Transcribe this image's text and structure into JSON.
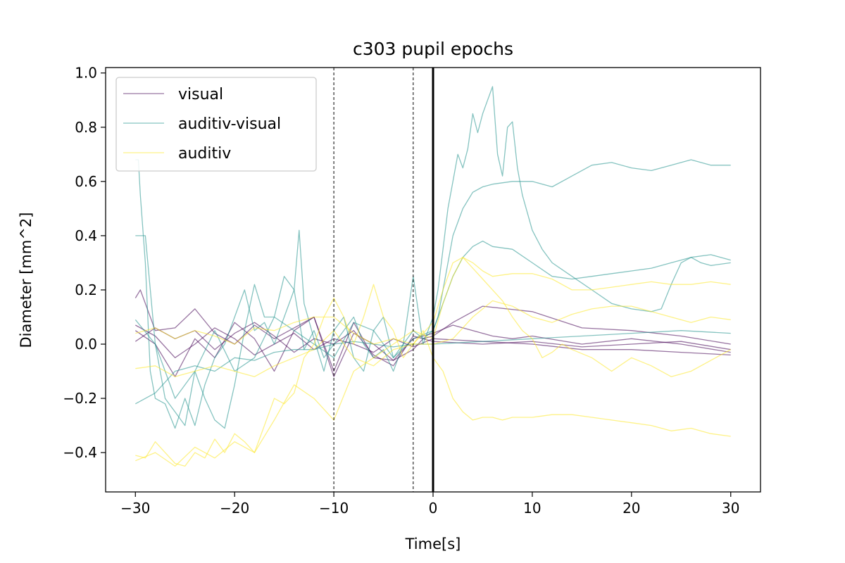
{
  "chart_data": {
    "type": "line",
    "title": "c303 pupil epochs",
    "xlabel": "Time[s]",
    "ylabel": "Diameter [mm^2]",
    "xlim": [
      -33,
      33
    ],
    "ylim": [
      -0.545,
      1.02
    ],
    "xticks": [
      -30,
      -20,
      -10,
      0,
      10,
      20,
      30
    ],
    "xtick_labels": [
      "−30",
      "−20",
      "−10",
      "0",
      "10",
      "20",
      "30"
    ],
    "yticks": [
      -0.4,
      -0.2,
      0.0,
      0.2,
      0.4,
      0.6,
      0.8,
      1.0
    ],
    "ytick_labels": [
      "−0.4",
      "−0.2",
      "0.0",
      "0.2",
      "0.4",
      "0.6",
      "0.8",
      "1.0"
    ],
    "grid": false,
    "legend_position": "upper-left",
    "colors": {
      "visual": "#440154",
      "auditiv-visual": "#21918c",
      "auditiv": "#fde725"
    },
    "vlines": [
      {
        "x": -10,
        "style": "dashed",
        "color": "#000000"
      },
      {
        "x": -2,
        "style": "dashed",
        "color": "#000000"
      },
      {
        "x": 0,
        "style": "solid",
        "color": "#000000"
      }
    ],
    "legend": [
      "visual",
      "auditiv-visual",
      "auditiv"
    ],
    "series": [
      {
        "name": "visual",
        "x": [
          -30,
          -29.5,
          -28,
          -26,
          -24,
          -22,
          -20,
          -18,
          -16,
          -14,
          -12,
          -10,
          -8,
          -6,
          -4,
          -2,
          -1,
          0,
          2,
          5,
          10,
          15,
          20,
          25,
          30
        ],
        "y": [
          0.17,
          0.2,
          0.05,
          0.06,
          0.13,
          0.04,
          0.0,
          0.07,
          0.02,
          0.06,
          0.1,
          -0.1,
          0.08,
          -0.05,
          -0.06,
          -0.02,
          0.02,
          0.03,
          0.08,
          0.14,
          0.12,
          0.06,
          0.05,
          0.03,
          0.0
        ]
      },
      {
        "name": "visual",
        "x": [
          -30,
          -28,
          -26,
          -24,
          -22,
          -20,
          -18,
          -16,
          -14,
          -12,
          -10,
          -8,
          -6,
          -4,
          -2,
          0,
          2,
          4,
          6,
          8,
          10,
          15,
          20,
          25,
          30
        ],
        "y": [
          0.05,
          0.0,
          -0.12,
          0.02,
          -0.05,
          0.08,
          0.02,
          -0.1,
          0.05,
          0.1,
          -0.12,
          0.04,
          0.0,
          -0.06,
          0.02,
          0.04,
          0.07,
          0.05,
          0.03,
          0.02,
          0.03,
          0.0,
          0.02,
          0.0,
          -0.03
        ]
      },
      {
        "name": "visual",
        "x": [
          -30,
          -28,
          -26,
          -24,
          -22,
          -20,
          -18,
          -16,
          -14,
          -12,
          -10,
          -8,
          -6,
          -4,
          -2,
          0,
          5,
          10,
          15,
          20,
          25,
          30
        ],
        "y": [
          0.01,
          0.06,
          0.02,
          0.05,
          -0.02,
          0.04,
          0.08,
          0.03,
          -0.03,
          0.02,
          0.0,
          0.05,
          -0.04,
          -0.08,
          0.03,
          0.01,
          0.0,
          0.01,
          -0.01,
          0.0,
          0.01,
          -0.02
        ]
      },
      {
        "name": "visual",
        "x": [
          -30,
          -28,
          -26,
          -24,
          -22,
          -20,
          -18,
          -16,
          -14,
          -12,
          -10,
          -8,
          -6,
          -4,
          -2,
          0,
          5,
          10,
          15,
          20,
          25,
          30
        ],
        "y": [
          0.07,
          0.03,
          -0.05,
          0.0,
          0.06,
          0.02,
          -0.04,
          0.0,
          0.04,
          -0.02,
          0.02,
          0.0,
          -0.03,
          0.02,
          -0.01,
          0.02,
          0.01,
          0.0,
          -0.02,
          -0.02,
          -0.03,
          -0.04
        ]
      },
      {
        "name": "auditiv-visual",
        "x": [
          -30,
          -29.7,
          -29.5,
          -29,
          -28.5,
          -28,
          -27,
          -26,
          -25,
          -24,
          -23,
          -22,
          -21,
          -20,
          -19,
          -18,
          -17,
          -16,
          -15,
          -14,
          -13.5,
          -13,
          -12,
          -11,
          -10,
          -9,
          -8,
          -7,
          -6,
          -5,
          -4,
          -3,
          -2,
          -1,
          0,
          0.5,
          1,
          1.5,
          2,
          2.5,
          3,
          3.5,
          4,
          4.5,
          5,
          5.5,
          6,
          6.5,
          7,
          7.5,
          8,
          8.5,
          9,
          10,
          11,
          12,
          14,
          16,
          18,
          20,
          22,
          23,
          24,
          25,
          26,
          27,
          28,
          30
        ],
        "y": [
          0.68,
          0.68,
          0.55,
          0.3,
          -0.1,
          -0.2,
          -0.22,
          -0.31,
          -0.2,
          -0.3,
          -0.15,
          -0.05,
          0.0,
          0.1,
          0.2,
          0.05,
          0.08,
          0.0,
          0.1,
          0.2,
          0.42,
          0.15,
          0.02,
          -0.1,
          0.05,
          0.1,
          -0.05,
          -0.1,
          0.05,
          0.1,
          -0.05,
          0.0,
          0.25,
          0.0,
          0.1,
          0.2,
          0.35,
          0.5,
          0.6,
          0.7,
          0.65,
          0.72,
          0.85,
          0.78,
          0.85,
          0.9,
          0.95,
          0.7,
          0.62,
          0.8,
          0.82,
          0.65,
          0.55,
          0.42,
          0.35,
          0.3,
          0.25,
          0.2,
          0.15,
          0.13,
          0.12,
          0.13,
          0.22,
          0.3,
          0.32,
          0.3,
          0.29,
          0.3
        ]
      },
      {
        "name": "auditiv-visual",
        "x": [
          -30,
          -29,
          -28,
          -27,
          -26,
          -25,
          -24,
          -23,
          -22,
          -21,
          -20,
          -19,
          -18,
          -17,
          -16,
          -15,
          -14,
          -13,
          -12,
          -11,
          -10,
          -9,
          -8,
          -7,
          -6,
          -5,
          -4,
          -3,
          -2,
          -1,
          0,
          0.5,
          1,
          2,
          3,
          4,
          5,
          6,
          8,
          10,
          12,
          14,
          16,
          18,
          20,
          22,
          24,
          26,
          28,
          30
        ],
        "y": [
          0.4,
          0.4,
          0.0,
          -0.2,
          -0.25,
          -0.3,
          -0.1,
          -0.2,
          -0.28,
          -0.31,
          -0.15,
          0.05,
          0.22,
          0.1,
          0.1,
          0.25,
          0.2,
          -0.02,
          0.05,
          -0.05,
          0.0,
          0.05,
          0.1,
          0.0,
          -0.05,
          -0.02,
          -0.1,
          0.0,
          0.05,
          0.02,
          0.05,
          0.1,
          0.2,
          0.4,
          0.5,
          0.56,
          0.58,
          0.59,
          0.6,
          0.6,
          0.58,
          0.62,
          0.66,
          0.67,
          0.65,
          0.64,
          0.66,
          0.68,
          0.66,
          0.66
        ]
      },
      {
        "name": "auditiv-visual",
        "x": [
          -30,
          -28,
          -26,
          -24,
          -22,
          -20,
          -18,
          -16,
          -14,
          -12,
          -10,
          -8,
          -6,
          -4,
          -2,
          0,
          1,
          2,
          3,
          4,
          5,
          6,
          8,
          10,
          12,
          14,
          16,
          18,
          20,
          22,
          24,
          26,
          28,
          30
        ],
        "y": [
          0.09,
          0.0,
          -0.2,
          -0.1,
          0.05,
          -0.1,
          -0.05,
          0.1,
          0.05,
          0.0,
          -0.05,
          0.08,
          0.05,
          -0.05,
          0.02,
          0.05,
          0.15,
          0.25,
          0.32,
          0.36,
          0.38,
          0.36,
          0.35,
          0.3,
          0.25,
          0.24,
          0.25,
          0.26,
          0.27,
          0.28,
          0.3,
          0.32,
          0.33,
          0.31
        ]
      },
      {
        "name": "auditiv-visual",
        "x": [
          -30,
          -28,
          -26,
          -24,
          -22,
          -20,
          -18,
          -16,
          -14,
          -12,
          -10,
          -8,
          -6,
          -4,
          -2,
          0,
          5,
          10,
          15,
          20,
          25,
          30
        ],
        "y": [
          -0.22,
          -0.18,
          -0.1,
          -0.08,
          -0.1,
          -0.05,
          -0.06,
          -0.03,
          -0.02,
          -0.02,
          0.0,
          0.01,
          0.0,
          -0.01,
          0.0,
          0.0,
          0.01,
          0.02,
          0.03,
          0.04,
          0.05,
          0.04
        ]
      },
      {
        "name": "auditiv",
        "x": [
          -30,
          -29,
          -28,
          -27,
          -26,
          -25,
          -24,
          -23,
          -22,
          -21,
          -20,
          -19,
          -18,
          -17,
          -16,
          -15,
          -14,
          -13,
          -12,
          -11,
          -10,
          -9,
          -8,
          -7,
          -6,
          -5,
          -4,
          -3,
          -2,
          -1,
          0,
          1,
          2,
          3,
          4,
          5,
          6,
          7,
          8,
          9,
          10,
          12,
          14,
          16,
          18,
          20,
          22,
          24,
          26,
          28,
          30
        ],
        "y": [
          -0.41,
          -0.42,
          -0.36,
          -0.4,
          -0.44,
          -0.45,
          -0.4,
          -0.42,
          -0.35,
          -0.4,
          -0.33,
          -0.36,
          -0.4,
          -0.3,
          -0.2,
          -0.22,
          -0.18,
          -0.05,
          0.0,
          0.1,
          0.17,
          0.1,
          0.0,
          0.1,
          0.22,
          0.1,
          0.05,
          -0.05,
          0.0,
          0.05,
          -0.05,
          -0.1,
          -0.2,
          -0.25,
          -0.28,
          -0.27,
          -0.27,
          -0.28,
          -0.27,
          -0.27,
          -0.27,
          -0.26,
          -0.26,
          -0.27,
          -0.28,
          -0.29,
          -0.3,
          -0.32,
          -0.31,
          -0.33,
          -0.34
        ]
      },
      {
        "name": "auditiv",
        "x": [
          -30,
          -28,
          -26,
          -24,
          -22,
          -20,
          -18,
          -16,
          -14,
          -12,
          -10,
          -8,
          -6,
          -4,
          -2,
          0,
          1,
          2,
          3,
          4,
          5,
          6,
          8,
          10,
          12,
          14,
          16,
          18,
          20,
          22,
          24,
          26,
          28,
          30
        ],
        "y": [
          -0.43,
          -0.4,
          -0.45,
          -0.38,
          -0.42,
          -0.36,
          -0.4,
          -0.28,
          -0.15,
          -0.2,
          -0.28,
          -0.1,
          -0.05,
          0.0,
          0.05,
          0.02,
          0.15,
          0.25,
          0.32,
          0.3,
          0.27,
          0.25,
          0.26,
          0.26,
          0.24,
          0.2,
          0.2,
          0.21,
          0.22,
          0.23,
          0.22,
          0.22,
          0.23,
          0.22
        ]
      },
      {
        "name": "auditiv",
        "x": [
          -30,
          -28,
          -26,
          -24,
          -22,
          -20,
          -18,
          -16,
          -14,
          -12,
          -10,
          -8,
          -6,
          -4,
          -2,
          0,
          1,
          2,
          3,
          4,
          5,
          6,
          7,
          8,
          9,
          10,
          11,
          12,
          13,
          14,
          16,
          18,
          20,
          22,
          24,
          26,
          28,
          30
        ],
        "y": [
          -0.09,
          -0.08,
          -0.12,
          -0.1,
          -0.08,
          -0.1,
          -0.12,
          -0.08,
          -0.05,
          -0.02,
          0.05,
          -0.05,
          -0.08,
          -0.02,
          0.0,
          0.08,
          0.2,
          0.3,
          0.32,
          0.28,
          0.24,
          0.2,
          0.16,
          0.1,
          0.05,
          0.02,
          -0.05,
          -0.03,
          0.0,
          -0.02,
          -0.05,
          -0.1,
          -0.05,
          -0.08,
          -0.12,
          -0.1,
          -0.06,
          -0.02
        ]
      },
      {
        "name": "auditiv",
        "x": [
          -30,
          -28,
          -26,
          -24,
          -22,
          -20,
          -18,
          -16,
          -14,
          -12,
          -10,
          -8,
          -6,
          -4,
          -2,
          0,
          2,
          4,
          6,
          8,
          10,
          12,
          14,
          16,
          18,
          20,
          22,
          24,
          26,
          28,
          30
        ],
        "y": [
          0.04,
          0.06,
          0.02,
          0.05,
          0.03,
          0.0,
          0.06,
          0.05,
          0.08,
          0.1,
          0.1,
          0.04,
          0.0,
          0.02,
          0.0,
          0.0,
          0.02,
          0.1,
          0.16,
          0.14,
          0.1,
          0.08,
          0.11,
          0.13,
          0.14,
          0.14,
          0.12,
          0.1,
          0.08,
          0.1,
          0.09
        ]
      }
    ]
  }
}
